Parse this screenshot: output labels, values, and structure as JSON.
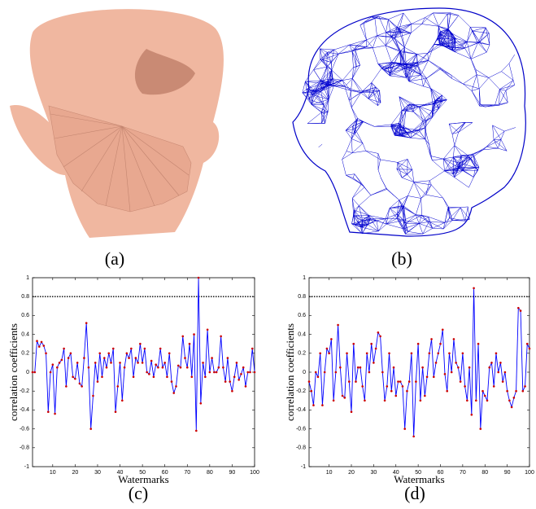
{
  "captions": [
    "(a)",
    "(b)",
    "(c)",
    "(d)"
  ],
  "chart_data": [
    {
      "type": "line",
      "xlabel": "Watermarks",
      "ylabel": "correlation coefficients",
      "x": [
        1,
        2,
        3,
        4,
        5,
        6,
        7,
        8,
        9,
        10,
        11,
        12,
        13,
        14,
        15,
        16,
        17,
        18,
        19,
        20,
        21,
        22,
        23,
        24,
        25,
        26,
        27,
        28,
        29,
        30,
        31,
        32,
        33,
        34,
        35,
        36,
        37,
        38,
        39,
        40,
        41,
        42,
        43,
        44,
        45,
        46,
        47,
        48,
        49,
        50,
        51,
        52,
        53,
        54,
        55,
        56,
        57,
        58,
        59,
        60,
        61,
        62,
        63,
        64,
        65,
        66,
        67,
        68,
        69,
        70,
        71,
        72,
        73,
        74,
        75,
        76,
        77,
        78,
        79,
        80,
        81,
        82,
        83,
        84,
        85,
        86,
        87,
        88,
        89,
        90,
        91,
        92,
        93,
        94,
        95,
        96,
        97,
        98,
        99,
        100
      ],
      "values": [
        0,
        0,
        0.33,
        0.27,
        0.32,
        0.28,
        0.2,
        -0.42,
        0,
        0.08,
        -0.44,
        0.05,
        0.1,
        0.13,
        0.25,
        -0.15,
        0.15,
        0.2,
        -0.05,
        -0.07,
        0.1,
        -0.12,
        -0.15,
        0.15,
        0.52,
        0.05,
        -0.6,
        -0.25,
        0.1,
        -0.1,
        0.2,
        -0.05,
        0.15,
        0.05,
        0.2,
        0.1,
        0.25,
        -0.42,
        -0.15,
        0.1,
        -0.3,
        0.05,
        0.2,
        0.15,
        0.25,
        -0.05,
        0.15,
        0.1,
        0.3,
        0.1,
        0.25,
        0,
        -0.02,
        0.12,
        -0.05,
        0.08,
        0.05,
        0.25,
        0.05,
        0.1,
        -0.05,
        0.2,
        -0.1,
        -0.22,
        -0.15,
        0.07,
        0.05,
        0.38,
        0.15,
        0.05,
        0.3,
        -0.05,
        0.4,
        -0.62,
        1,
        -0.33,
        0.1,
        -0.05,
        0.45,
        0,
        0.15,
        0,
        0,
        0.05,
        0.38,
        0.05,
        -0.1,
        0.15,
        -0.1,
        -0.2,
        -0.05,
        0.1,
        -0.08,
        -0.02,
        0.05,
        -0.15,
        0,
        0,
        0.25,
        0
      ],
      "color": "#0000ff",
      "marker_color": "#cc0000",
      "threshold": 0.8,
      "xlim": [
        1,
        100
      ],
      "xticks": [
        10,
        20,
        30,
        40,
        50,
        60,
        70,
        80,
        90,
        100
      ],
      "ylim": [
        -1,
        1
      ],
      "yticks": [
        -1,
        -0.8,
        -0.6,
        -0.4,
        -0.2,
        0,
        0.2,
        0.4,
        0.6,
        0.8,
        1
      ]
    },
    {
      "type": "line",
      "xlabel": "Watermarks",
      "ylabel": "correlation coefficients",
      "x": [
        1,
        2,
        3,
        4,
        5,
        6,
        7,
        8,
        9,
        10,
        11,
        12,
        13,
        14,
        15,
        16,
        17,
        18,
        19,
        20,
        21,
        22,
        23,
        24,
        25,
        26,
        27,
        28,
        29,
        30,
        31,
        32,
        33,
        34,
        35,
        36,
        37,
        38,
        39,
        40,
        41,
        42,
        43,
        44,
        45,
        46,
        47,
        48,
        49,
        50,
        51,
        52,
        53,
        54,
        55,
        56,
        57,
        58,
        59,
        60,
        61,
        62,
        63,
        64,
        65,
        66,
        67,
        68,
        69,
        70,
        71,
        72,
        73,
        74,
        75,
        76,
        77,
        78,
        79,
        80,
        81,
        82,
        83,
        84,
        85,
        86,
        87,
        88,
        89,
        90,
        91,
        92,
        93,
        94,
        95,
        96,
        97,
        98,
        99,
        100
      ],
      "values": [
        -0.1,
        -0.2,
        -0.35,
        0,
        -0.05,
        0.2,
        -0.35,
        0,
        0.25,
        0.2,
        0.35,
        -0.3,
        0,
        0.5,
        0.05,
        -0.25,
        -0.27,
        0.2,
        -0.1,
        -0.42,
        0.3,
        -0.1,
        0.05,
        0.05,
        -0.15,
        -0.3,
        0.2,
        0,
        0.3,
        0.1,
        0.25,
        0.42,
        0.38,
        0,
        -0.3,
        -0.15,
        0.2,
        -0.2,
        0.05,
        -0.25,
        -0.1,
        -0.1,
        -0.15,
        -0.6,
        -0.2,
        -0.1,
        0.2,
        -0.68,
        -0.1,
        0.3,
        -0.3,
        0.05,
        -0.25,
        -0.05,
        0.2,
        0.35,
        -0.05,
        0.1,
        0.2,
        0.3,
        0.45,
        -0.02,
        -0.2,
        0.2,
        0,
        0.35,
        0.1,
        0.05,
        -0.1,
        0.2,
        -0.15,
        -0.3,
        0.05,
        -0.45,
        0.89,
        -0.3,
        0.3,
        -0.6,
        -0.2,
        -0.25,
        -0.3,
        0.05,
        0.1,
        -0.15,
        0.2,
        0,
        0.1,
        -0.1,
        0,
        -0.2,
        -0.3,
        -0.37,
        -0.27,
        -0.2,
        0.68,
        0.65,
        -0.2,
        -0.15,
        0.3,
        0.25
      ],
      "color": "#0000ff",
      "marker_color": "#cc0000",
      "threshold": 0.8,
      "xlim": [
        1,
        100
      ],
      "xticks": [
        10,
        20,
        30,
        40,
        50,
        60,
        70,
        80,
        90,
        100
      ],
      "ylim": [
        -1,
        1
      ],
      "yticks": [
        -1,
        -0.8,
        -0.6,
        -0.4,
        -0.2,
        0,
        0.2,
        0.4,
        0.6,
        0.8,
        1
      ]
    }
  ]
}
